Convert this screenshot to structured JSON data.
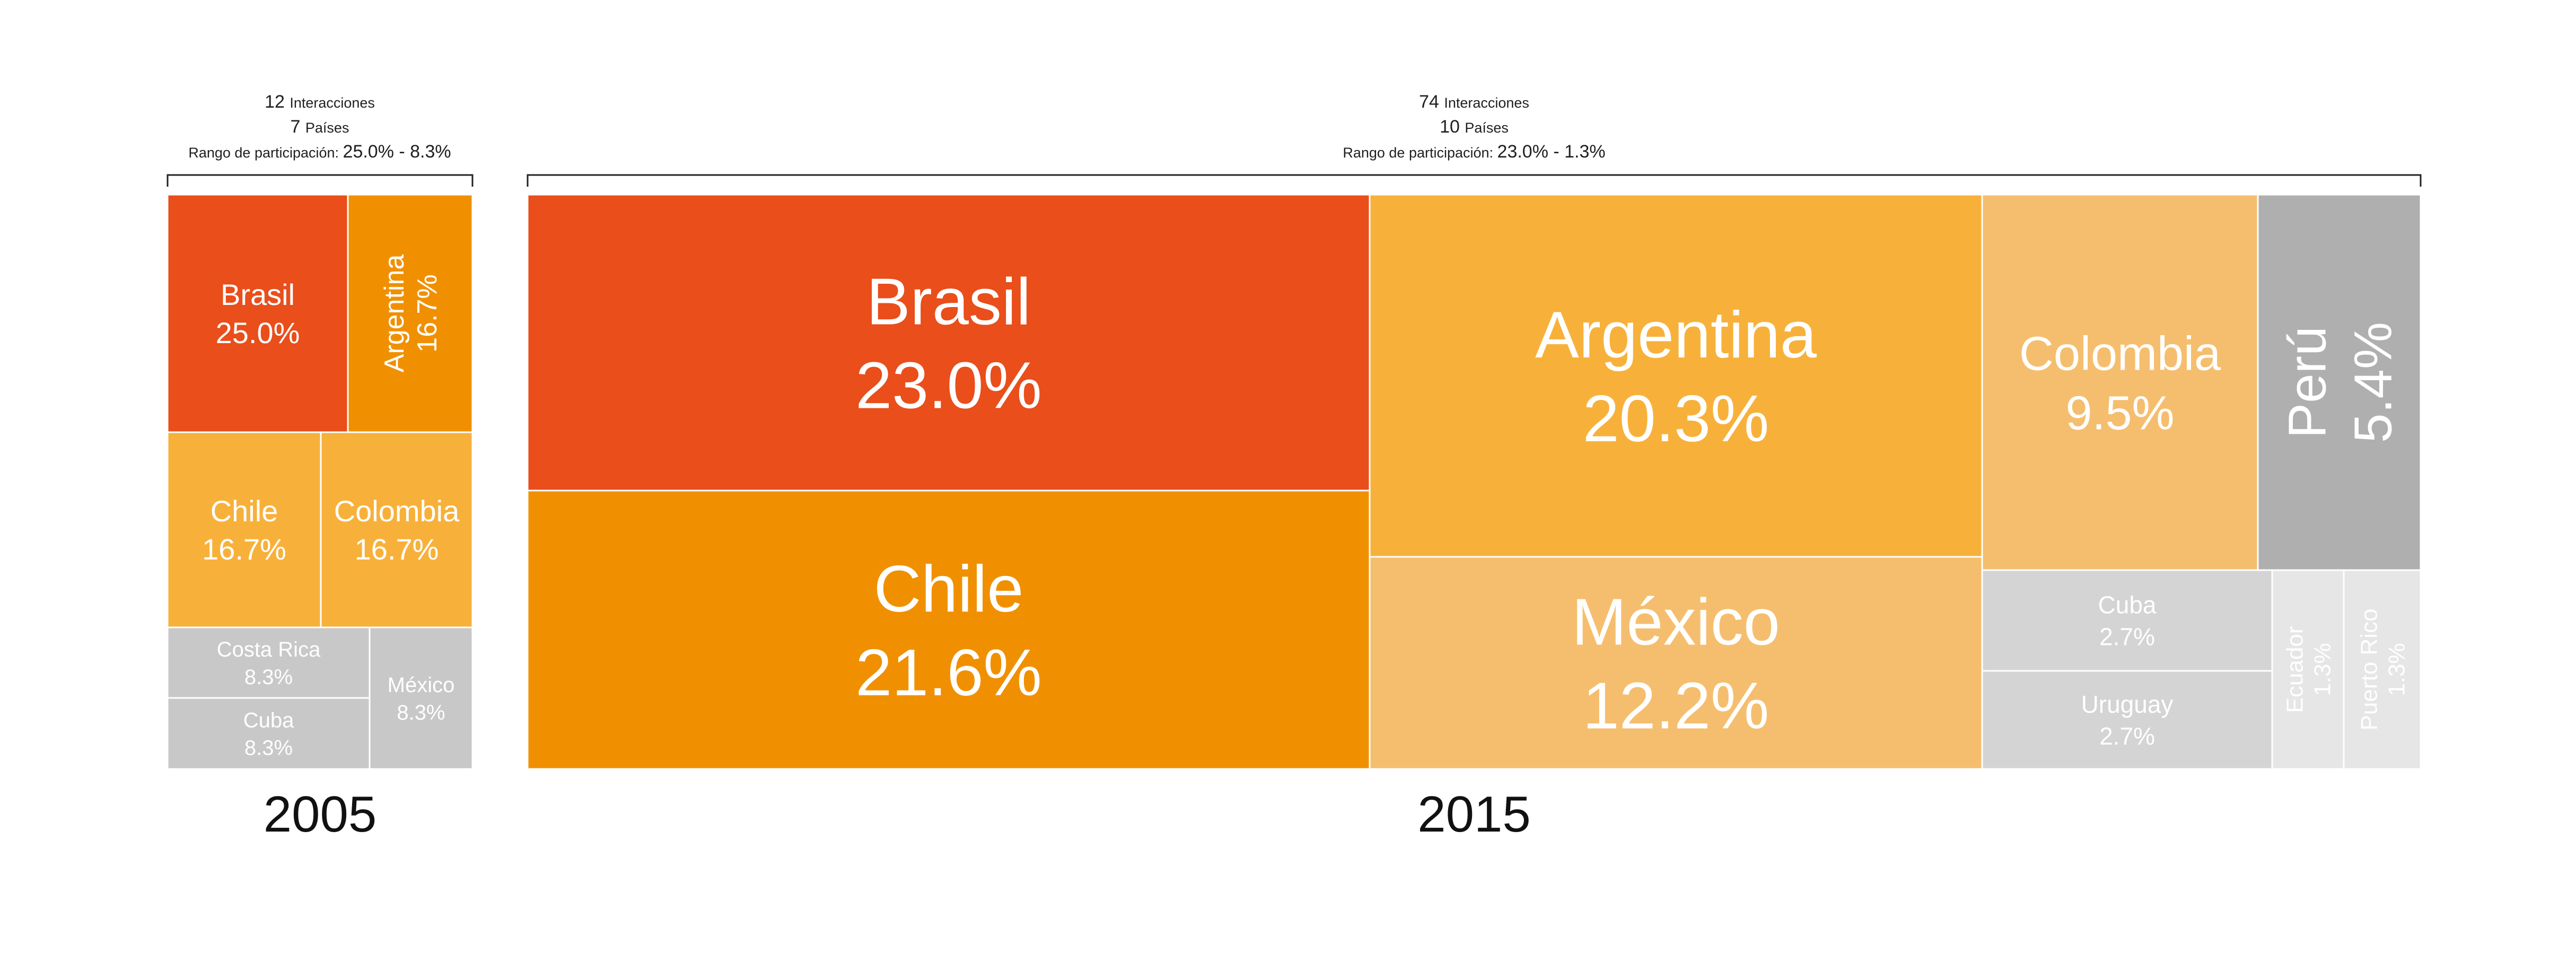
{
  "chart_data": [
    {
      "type": "treemap",
      "year": "2005",
      "header": {
        "interactions_count": "12",
        "interactions_label": "Interacciones",
        "countries_count": "7",
        "countries_label": "Países",
        "range_label": "Rango de participación:",
        "range_value": "25.0% - 8.3%"
      },
      "items": [
        {
          "name": "Brasil",
          "value": 25.0,
          "label": "25.0%",
          "color": "#E94E1B"
        },
        {
          "name": "Argentina",
          "value": 16.7,
          "label": "16.7%",
          "color": "#F09000"
        },
        {
          "name": "Chile",
          "value": 16.7,
          "label": "16.7%",
          "color": "#F7B13A"
        },
        {
          "name": "Colombia",
          "value": 16.7,
          "label": "16.7%",
          "color": "#F7B13A"
        },
        {
          "name": "Costa Rica",
          "value": 8.3,
          "label": "8.3%",
          "color": "#C8C8C8"
        },
        {
          "name": "Cuba",
          "value": 8.3,
          "label": "8.3%",
          "color": "#C8C8C8"
        },
        {
          "name": "México",
          "value": 8.3,
          "label": "8.3%",
          "color": "#C8C8C8"
        }
      ]
    },
    {
      "type": "treemap",
      "year": "2015",
      "header": {
        "interactions_count": "74",
        "interactions_label": "Interacciones",
        "countries_count": "10",
        "countries_label": "Países",
        "range_label": "Rango de participación:",
        "range_value": "23.0% - 1.3%"
      },
      "items": [
        {
          "name": "Brasil",
          "value": 23.0,
          "label": "23.0%",
          "color": "#E94E1B"
        },
        {
          "name": "Chile",
          "value": 21.6,
          "label": "21.6%",
          "color": "#F09000"
        },
        {
          "name": "Argentina",
          "value": 20.3,
          "label": "20.3%",
          "color": "#F7B13A"
        },
        {
          "name": "México",
          "value": 12.2,
          "label": "12.2%",
          "color": "#F5BE6E"
        },
        {
          "name": "Colombia",
          "value": 9.5,
          "label": "9.5%",
          "color": "#F5BE6E"
        },
        {
          "name": "Perú",
          "value": 5.4,
          "label": "5.4%",
          "color": "#AFAFAF"
        },
        {
          "name": "Cuba",
          "value": 2.7,
          "label": "2.7%",
          "color": "#D4D4D4"
        },
        {
          "name": "Uruguay",
          "value": 2.7,
          "label": "2.7%",
          "color": "#D4D4D4"
        },
        {
          "name": "Ecuador",
          "value": 1.3,
          "label": "1.3%",
          "color": "#E6E6E6"
        },
        {
          "name": "Puerto Rico",
          "value": 1.3,
          "label": "1.3%",
          "color": "#E6E6E6"
        }
      ]
    }
  ]
}
